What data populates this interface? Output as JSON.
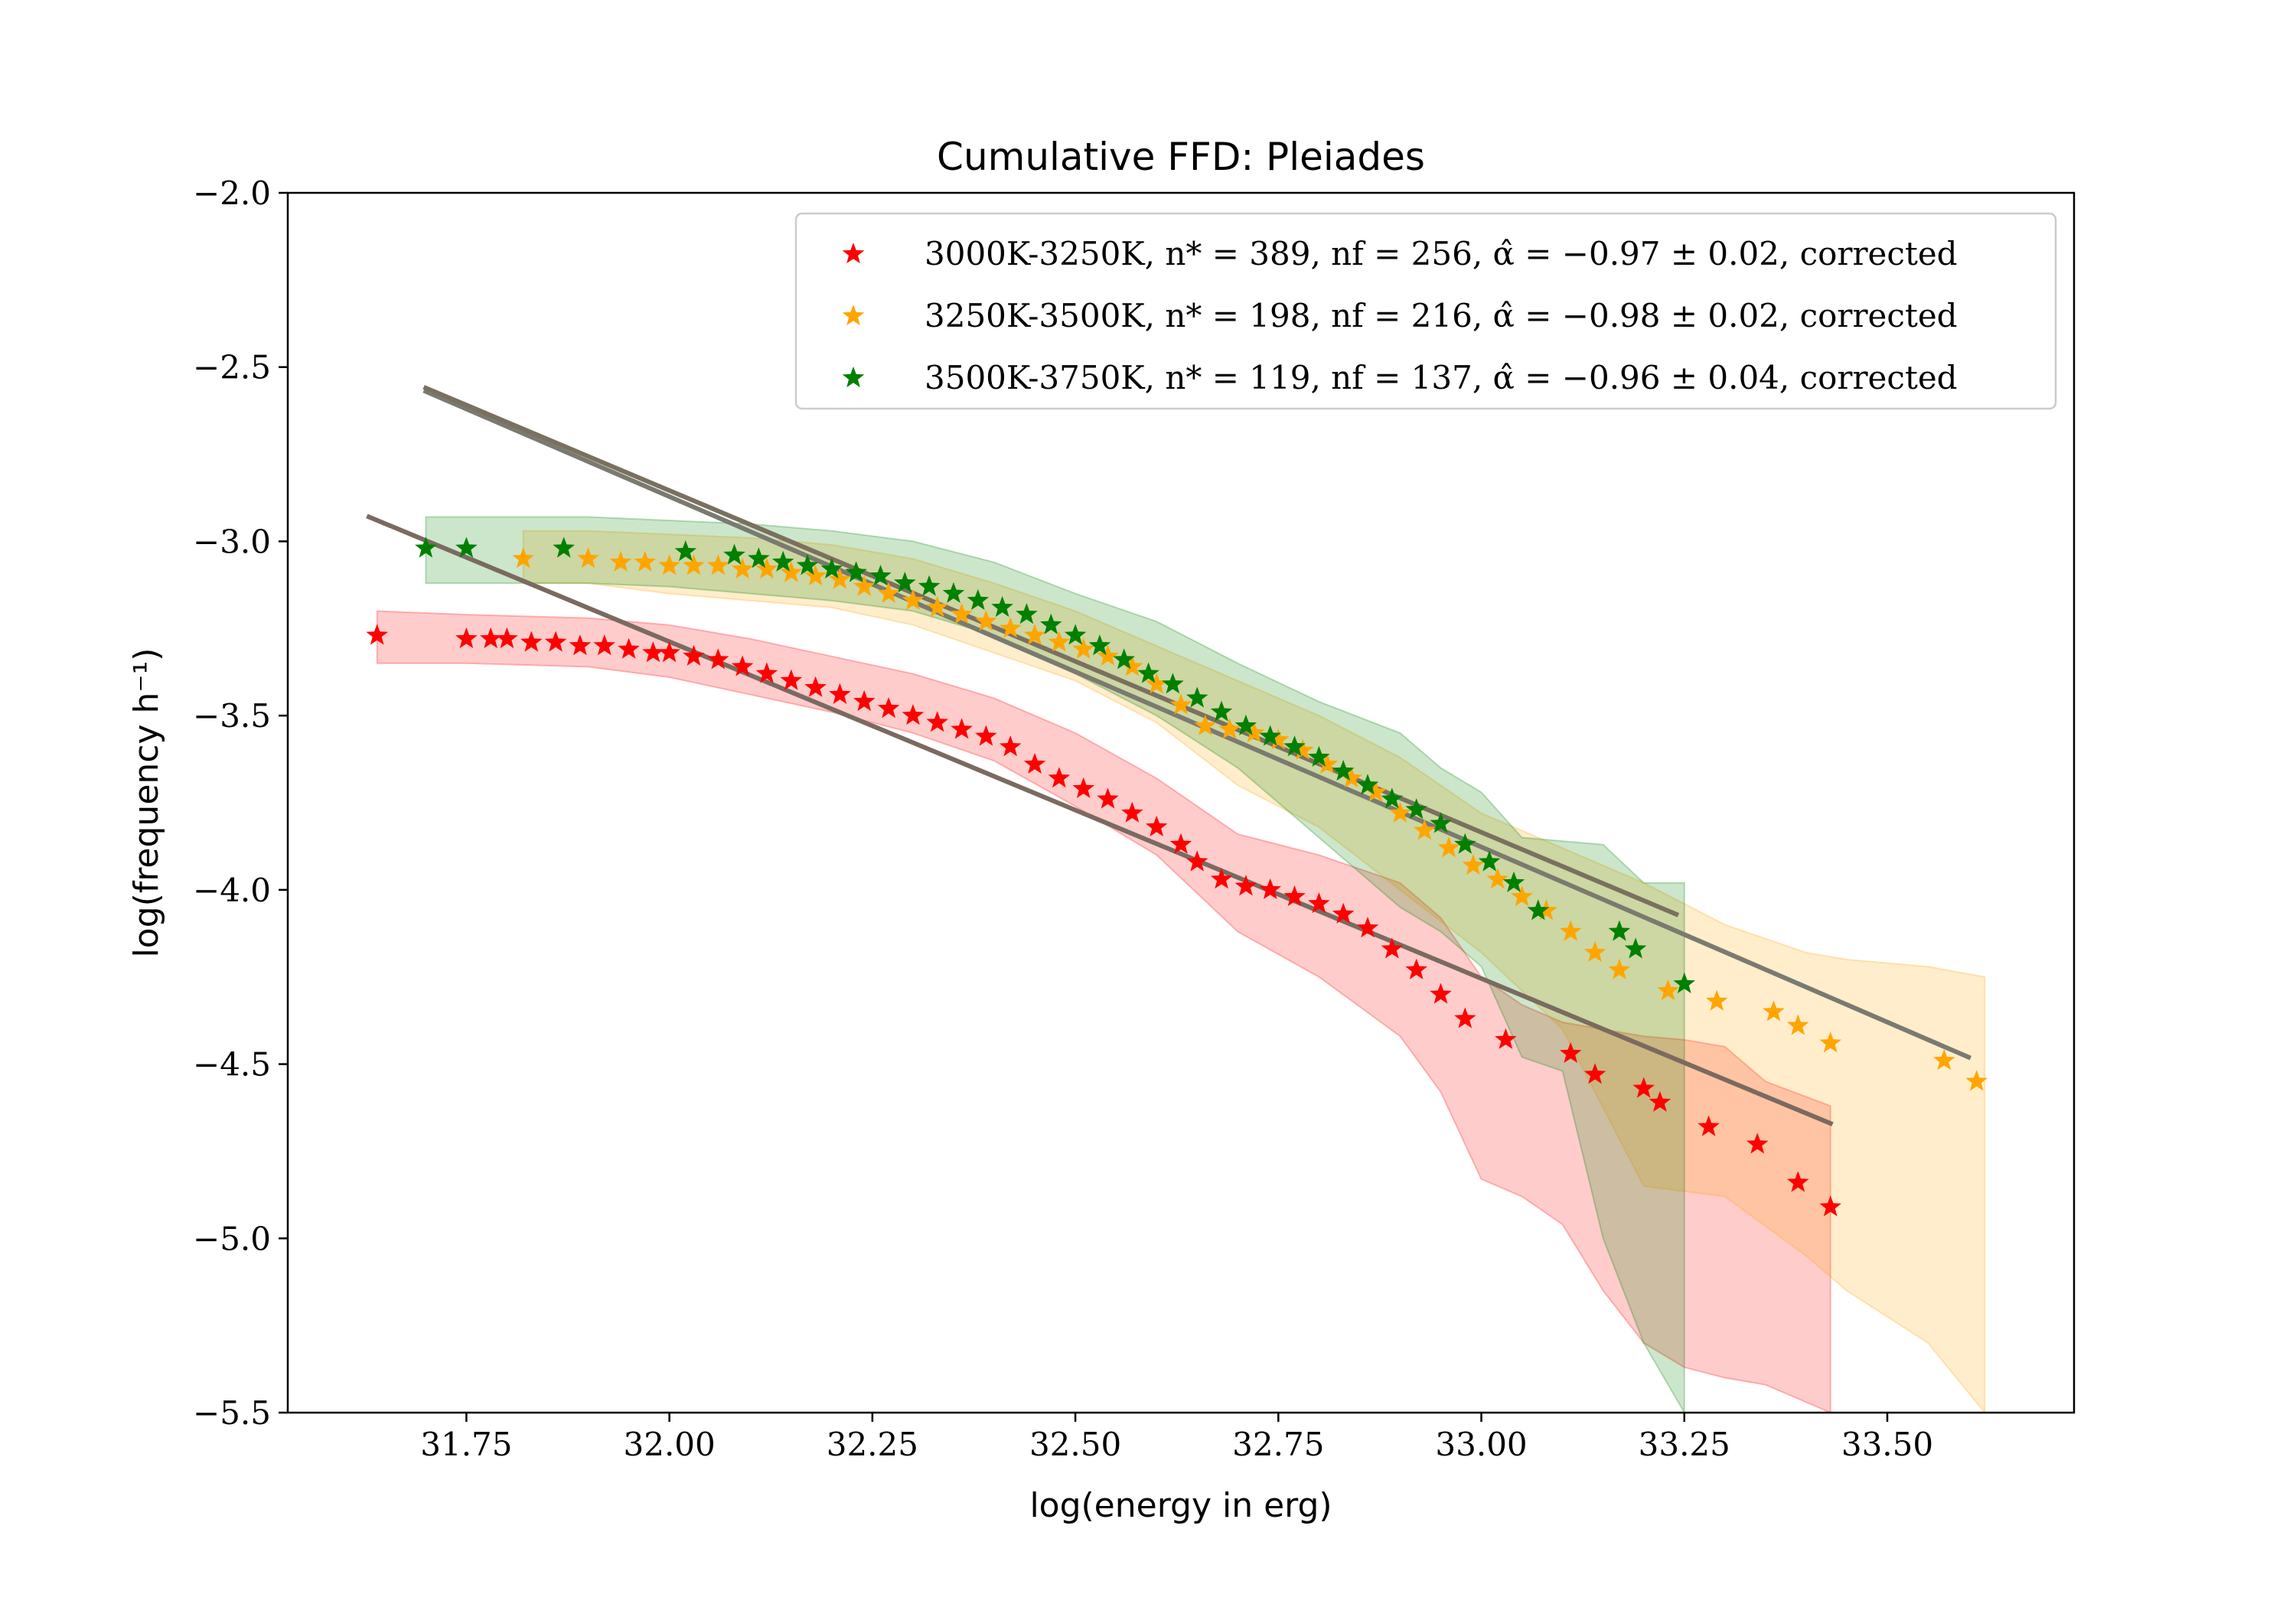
{
  "chart_data": {
    "type": "scatter",
    "title": "Cumulative FFD: Pleiades",
    "xlabel": "log(energy in erg)",
    "ylabel": "log(frequency h⁻¹)",
    "xlim": [
      31.53,
      33.73
    ],
    "ylim": [
      -5.5,
      -2.0
    ],
    "xticks": [
      "31.75",
      "32.00",
      "32.25",
      "32.50",
      "32.75",
      "33.00",
      "33.25",
      "33.50"
    ],
    "yticks": [
      "−2.0",
      "−2.5",
      "−3.0",
      "−3.5",
      "−4.0",
      "−4.5",
      "−5.0",
      "−5.5"
    ],
    "legend_position": "upper-right",
    "series": [
      {
        "name": "3000K-3250K, n* = 389, nf = 256, α̂ = −0.97 ± 0.02, corrected",
        "color": "#ff0000",
        "marker": "star",
        "points": [
          [
            31.64,
            -3.27
          ],
          [
            31.75,
            -3.28
          ],
          [
            31.78,
            -3.28
          ],
          [
            31.8,
            -3.28
          ],
          [
            31.83,
            -3.29
          ],
          [
            31.86,
            -3.29
          ],
          [
            31.89,
            -3.3
          ],
          [
            31.92,
            -3.3
          ],
          [
            31.95,
            -3.31
          ],
          [
            31.98,
            -3.32
          ],
          [
            32.0,
            -3.32
          ],
          [
            32.03,
            -3.33
          ],
          [
            32.06,
            -3.34
          ],
          [
            32.09,
            -3.36
          ],
          [
            32.12,
            -3.38
          ],
          [
            32.15,
            -3.4
          ],
          [
            32.18,
            -3.42
          ],
          [
            32.21,
            -3.44
          ],
          [
            32.24,
            -3.46
          ],
          [
            32.27,
            -3.48
          ],
          [
            32.3,
            -3.5
          ],
          [
            32.33,
            -3.52
          ],
          [
            32.36,
            -3.54
          ],
          [
            32.39,
            -3.56
          ],
          [
            32.42,
            -3.59
          ],
          [
            32.45,
            -3.64
          ],
          [
            32.48,
            -3.68
          ],
          [
            32.51,
            -3.71
          ],
          [
            32.54,
            -3.74
          ],
          [
            32.57,
            -3.78
          ],
          [
            32.6,
            -3.82
          ],
          [
            32.63,
            -3.87
          ],
          [
            32.65,
            -3.92
          ],
          [
            32.68,
            -3.97
          ],
          [
            32.71,
            -3.99
          ],
          [
            32.74,
            -4.0
          ],
          [
            32.77,
            -4.02
          ],
          [
            32.8,
            -4.04
          ],
          [
            32.83,
            -4.07
          ],
          [
            32.86,
            -4.11
          ],
          [
            32.89,
            -4.17
          ],
          [
            32.92,
            -4.23
          ],
          [
            32.95,
            -4.3
          ],
          [
            32.98,
            -4.37
          ],
          [
            33.03,
            -4.43
          ],
          [
            33.11,
            -4.47
          ],
          [
            33.14,
            -4.53
          ],
          [
            33.2,
            -4.57
          ],
          [
            33.22,
            -4.61
          ],
          [
            33.28,
            -4.68
          ],
          [
            33.34,
            -4.73
          ],
          [
            33.39,
            -4.84
          ],
          [
            33.43,
            -4.91
          ]
        ]
      },
      {
        "name": "3250K-3500K, n* = 198, nf = 216, α̂ = −0.98 ± 0.02, corrected",
        "color": "#ffa500",
        "marker": "star",
        "points": [
          [
            31.82,
            -3.05
          ],
          [
            31.9,
            -3.05
          ],
          [
            31.94,
            -3.06
          ],
          [
            31.97,
            -3.06
          ],
          [
            32.0,
            -3.07
          ],
          [
            32.03,
            -3.07
          ],
          [
            32.06,
            -3.07
          ],
          [
            32.09,
            -3.08
          ],
          [
            32.12,
            -3.08
          ],
          [
            32.15,
            -3.09
          ],
          [
            32.18,
            -3.1
          ],
          [
            32.21,
            -3.11
          ],
          [
            32.24,
            -3.13
          ],
          [
            32.27,
            -3.15
          ],
          [
            32.3,
            -3.17
          ],
          [
            32.33,
            -3.19
          ],
          [
            32.36,
            -3.21
          ],
          [
            32.39,
            -3.23
          ],
          [
            32.42,
            -3.25
          ],
          [
            32.45,
            -3.27
          ],
          [
            32.48,
            -3.29
          ],
          [
            32.51,
            -3.31
          ],
          [
            32.54,
            -3.33
          ],
          [
            32.57,
            -3.36
          ],
          [
            32.6,
            -3.41
          ],
          [
            32.63,
            -3.47
          ],
          [
            32.66,
            -3.53
          ],
          [
            32.69,
            -3.54
          ],
          [
            32.72,
            -3.55
          ],
          [
            32.75,
            -3.57
          ],
          [
            32.78,
            -3.6
          ],
          [
            32.81,
            -3.64
          ],
          [
            32.84,
            -3.68
          ],
          [
            32.87,
            -3.72
          ],
          [
            32.9,
            -3.78
          ],
          [
            32.93,
            -3.83
          ],
          [
            32.96,
            -3.88
          ],
          [
            32.99,
            -3.93
          ],
          [
            33.02,
            -3.97
          ],
          [
            33.05,
            -4.02
          ],
          [
            33.08,
            -4.06
          ],
          [
            33.11,
            -4.12
          ],
          [
            33.14,
            -4.18
          ],
          [
            33.17,
            -4.23
          ],
          [
            33.23,
            -4.29
          ],
          [
            33.29,
            -4.32
          ],
          [
            33.36,
            -4.35
          ],
          [
            33.39,
            -4.39
          ],
          [
            33.43,
            -4.44
          ],
          [
            33.57,
            -4.49
          ],
          [
            33.61,
            -4.55
          ]
        ]
      },
      {
        "name": "3500K-3750K, n* = 119, nf = 137, α̂ = −0.96 ± 0.04, corrected",
        "color": "#008000",
        "marker": "star",
        "points": [
          [
            31.7,
            -3.02
          ],
          [
            31.75,
            -3.02
          ],
          [
            31.87,
            -3.02
          ],
          [
            32.02,
            -3.03
          ],
          [
            32.08,
            -3.04
          ],
          [
            32.11,
            -3.05
          ],
          [
            32.14,
            -3.06
          ],
          [
            32.17,
            -3.07
          ],
          [
            32.2,
            -3.08
          ],
          [
            32.23,
            -3.09
          ],
          [
            32.26,
            -3.1
          ],
          [
            32.29,
            -3.12
          ],
          [
            32.32,
            -3.13
          ],
          [
            32.35,
            -3.15
          ],
          [
            32.38,
            -3.17
          ],
          [
            32.41,
            -3.19
          ],
          [
            32.44,
            -3.21
          ],
          [
            32.47,
            -3.24
          ],
          [
            32.5,
            -3.27
          ],
          [
            32.53,
            -3.3
          ],
          [
            32.56,
            -3.34
          ],
          [
            32.59,
            -3.38
          ],
          [
            32.62,
            -3.41
          ],
          [
            32.65,
            -3.45
          ],
          [
            32.68,
            -3.49
          ],
          [
            32.71,
            -3.53
          ],
          [
            32.74,
            -3.56
          ],
          [
            32.77,
            -3.59
          ],
          [
            32.8,
            -3.62
          ],
          [
            32.83,
            -3.66
          ],
          [
            32.86,
            -3.7
          ],
          [
            32.89,
            -3.74
          ],
          [
            32.92,
            -3.77
          ],
          [
            32.95,
            -3.81
          ],
          [
            32.98,
            -3.87
          ],
          [
            33.01,
            -3.92
          ],
          [
            33.04,
            -3.98
          ],
          [
            33.07,
            -4.06
          ],
          [
            33.17,
            -4.12
          ],
          [
            33.19,
            -4.17
          ],
          [
            33.25,
            -4.27
          ]
        ]
      }
    ],
    "fits": [
      {
        "color": "#7a6a60",
        "x": [
          31.63,
          33.43
        ],
        "y": [
          -2.93,
          -4.67
        ]
      },
      {
        "color": "#7a7a70",
        "x": [
          31.7,
          33.6
        ],
        "y": [
          -2.57,
          -4.48
        ]
      },
      {
        "color": "#7a7060",
        "x": [
          31.7,
          33.24
        ],
        "y": [
          -2.56,
          -4.07
        ]
      }
    ],
    "bands": [
      {
        "color": "#ff0000",
        "x": [
          31.64,
          31.75,
          31.9,
          32.0,
          32.1,
          32.2,
          32.3,
          32.4,
          32.5,
          32.6,
          32.7,
          32.8,
          32.9,
          32.95,
          33.0,
          33.05,
          33.1,
          33.15,
          33.2,
          33.25,
          33.3,
          33.35,
          33.43
        ],
        "upper": [
          -3.2,
          -3.21,
          -3.22,
          -3.24,
          -3.28,
          -3.33,
          -3.38,
          -3.45,
          -3.55,
          -3.68,
          -3.84,
          -3.9,
          -3.98,
          -4.08,
          -4.25,
          -4.33,
          -4.38,
          -4.4,
          -4.42,
          -4.43,
          -4.45,
          -4.55,
          -4.62
        ],
        "lower": [
          -3.35,
          -3.35,
          -3.36,
          -3.39,
          -3.44,
          -3.49,
          -3.55,
          -3.63,
          -3.76,
          -3.9,
          -4.12,
          -4.25,
          -4.42,
          -4.58,
          -4.83,
          -4.88,
          -4.96,
          -5.15,
          -5.3,
          -5.37,
          -5.4,
          -5.42,
          -5.5
        ]
      },
      {
        "color": "#ffa500",
        "x": [
          31.82,
          31.9,
          32.0,
          32.1,
          32.2,
          32.3,
          32.4,
          32.5,
          32.6,
          32.7,
          32.8,
          32.9,
          33.0,
          33.1,
          33.2,
          33.3,
          33.4,
          33.45,
          33.55,
          33.62
        ],
        "upper": [
          -2.97,
          -2.97,
          -2.98,
          -2.99,
          -3.01,
          -3.05,
          -3.12,
          -3.2,
          -3.3,
          -3.4,
          -3.5,
          -3.62,
          -3.78,
          -3.88,
          -3.98,
          -4.1,
          -4.18,
          -4.2,
          -4.22,
          -4.25
        ],
        "lower": [
          -3.12,
          -3.12,
          -3.15,
          -3.17,
          -3.19,
          -3.24,
          -3.32,
          -3.4,
          -3.52,
          -3.7,
          -3.82,
          -4.0,
          -4.18,
          -4.4,
          -4.85,
          -4.88,
          -5.05,
          -5.15,
          -5.3,
          -5.5
        ]
      },
      {
        "color": "#008000",
        "x": [
          31.7,
          31.8,
          31.9,
          32.0,
          32.1,
          32.2,
          32.3,
          32.4,
          32.5,
          32.6,
          32.7,
          32.8,
          32.9,
          32.95,
          33.0,
          33.05,
          33.1,
          33.15,
          33.2,
          33.25
        ],
        "upper": [
          -2.93,
          -2.93,
          -2.93,
          -2.94,
          -2.95,
          -2.97,
          -3.0,
          -3.06,
          -3.15,
          -3.23,
          -3.35,
          -3.46,
          -3.55,
          -3.65,
          -3.72,
          -3.85,
          -3.86,
          -3.87,
          -3.98,
          -3.98
        ],
        "lower": [
          -3.12,
          -3.12,
          -3.12,
          -3.13,
          -3.15,
          -3.17,
          -3.2,
          -3.27,
          -3.38,
          -3.5,
          -3.65,
          -3.85,
          -4.05,
          -4.12,
          -4.22,
          -4.48,
          -4.52,
          -5.0,
          -5.3,
          -5.5
        ]
      }
    ]
  }
}
